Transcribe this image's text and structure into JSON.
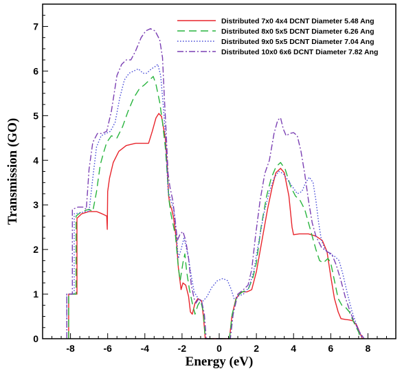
{
  "chart_data": {
    "type": "line",
    "title": "",
    "xlabel": "Energy (eV)",
    "ylabel": "Transmission (GO)",
    "xlim": [
      -9.5,
      9.5
    ],
    "ylim": [
      0,
      7.5
    ],
    "xticks": [
      -8,
      -6,
      -4,
      -2,
      0,
      2,
      4,
      6,
      8
    ],
    "yticks": [
      0,
      1,
      2,
      3,
      4,
      5,
      6,
      7
    ],
    "grid": false,
    "legend_position": "top-right",
    "series": [
      {
        "name": "Distributed 7x0 4x4 DCNT Diameter 5.48 Ang",
        "color": "#e8232a",
        "dash": "solid",
        "points": [
          [
            -8.1,
            0
          ],
          [
            -8.1,
            1
          ],
          [
            -7.65,
            1
          ],
          [
            -7.65,
            2.7
          ],
          [
            -7.4,
            2.8
          ],
          [
            -7.0,
            2.85
          ],
          [
            -6.6,
            2.85
          ],
          [
            -6.3,
            2.8
          ],
          [
            -6.05,
            2.75
          ],
          [
            -6.02,
            2.45
          ],
          [
            -6.0,
            3.3
          ],
          [
            -5.9,
            3.6
          ],
          [
            -5.7,
            3.95
          ],
          [
            -5.4,
            4.2
          ],
          [
            -5.0,
            4.33
          ],
          [
            -4.5,
            4.38
          ],
          [
            -4.0,
            4.38
          ],
          [
            -3.8,
            4.38
          ],
          [
            -3.6,
            4.65
          ],
          [
            -3.4,
            4.95
          ],
          [
            -3.25,
            5.05
          ],
          [
            -3.1,
            4.98
          ],
          [
            -2.9,
            4.5
          ],
          [
            -2.8,
            3.9
          ],
          [
            -2.72,
            3.2
          ],
          [
            -2.65,
            3.0
          ],
          [
            -2.55,
            2.9
          ],
          [
            -2.45,
            2.7
          ],
          [
            -2.3,
            2.2
          ],
          [
            -2.2,
            1.6
          ],
          [
            -2.05,
            1.1
          ],
          [
            -1.95,
            1.25
          ],
          [
            -1.8,
            1.2
          ],
          [
            -1.65,
            0.95
          ],
          [
            -1.55,
            0.6
          ],
          [
            -1.45,
            0.55
          ],
          [
            -1.3,
            0.8
          ],
          [
            -1.15,
            0.9
          ],
          [
            -0.95,
            0.85
          ],
          [
            -0.85,
            0.5
          ],
          [
            -0.75,
            0
          ],
          [
            0.55,
            0
          ],
          [
            0.68,
            0.5
          ],
          [
            0.9,
            0.9
          ],
          [
            1.2,
            1.05
          ],
          [
            1.5,
            1.05
          ],
          [
            1.75,
            1.1
          ],
          [
            2.0,
            1.5
          ],
          [
            2.3,
            2.2
          ],
          [
            2.6,
            2.9
          ],
          [
            2.85,
            3.4
          ],
          [
            3.05,
            3.72
          ],
          [
            3.3,
            3.82
          ],
          [
            3.5,
            3.72
          ],
          [
            3.75,
            3.2
          ],
          [
            3.92,
            2.5
          ],
          [
            4.0,
            2.33
          ],
          [
            4.3,
            2.35
          ],
          [
            4.8,
            2.35
          ],
          [
            5.2,
            2.3
          ],
          [
            5.55,
            2.2
          ],
          [
            5.8,
            1.95
          ],
          [
            6.0,
            1.4
          ],
          [
            6.2,
            0.9
          ],
          [
            6.4,
            0.6
          ],
          [
            6.55,
            0.45
          ],
          [
            6.8,
            0.43
          ],
          [
            7.0,
            0.42
          ],
          [
            7.2,
            0.4
          ],
          [
            7.4,
            0.3
          ],
          [
            7.6,
            0.1
          ],
          [
            7.7,
            0
          ]
        ]
      },
      {
        "name": "Distributed  8x0 5x5 DCNT Diameter 6.26  Ang",
        "color": "#27b43d",
        "dash": "long-dash",
        "points": [
          [
            -8.1,
            0
          ],
          [
            -8.1,
            1
          ],
          [
            -7.7,
            1
          ],
          [
            -7.7,
            2.75
          ],
          [
            -7.4,
            2.85
          ],
          [
            -7.0,
            2.9
          ],
          [
            -6.8,
            2.85
          ],
          [
            -6.6,
            3.3
          ],
          [
            -6.4,
            3.9
          ],
          [
            -6.2,
            4.2
          ],
          [
            -6.05,
            4.4
          ],
          [
            -5.8,
            4.55
          ],
          [
            -5.5,
            4.5
          ],
          [
            -5.2,
            4.75
          ],
          [
            -4.9,
            5.1
          ],
          [
            -4.6,
            5.4
          ],
          [
            -4.3,
            5.6
          ],
          [
            -4.0,
            5.7
          ],
          [
            -3.75,
            5.8
          ],
          [
            -3.55,
            5.88
          ],
          [
            -3.4,
            5.7
          ],
          [
            -3.2,
            5.3
          ],
          [
            -3.05,
            4.85
          ],
          [
            -2.9,
            4.3
          ],
          [
            -2.8,
            3.7
          ],
          [
            -2.7,
            3.1
          ],
          [
            -2.6,
            2.8
          ],
          [
            -2.5,
            2.6
          ],
          [
            -2.35,
            2.3
          ],
          [
            -2.2,
            1.6
          ],
          [
            -2.1,
            1.3
          ],
          [
            -1.95,
            1.7
          ],
          [
            -1.85,
            1.9
          ],
          [
            -1.75,
            1.5
          ],
          [
            -1.6,
            1.1
          ],
          [
            -1.45,
            0.8
          ],
          [
            -1.3,
            0.55
          ],
          [
            -1.15,
            0.75
          ],
          [
            -1.0,
            0.85
          ],
          [
            -0.85,
            0.6
          ],
          [
            -0.75,
            0
          ],
          [
            0.55,
            0
          ],
          [
            0.7,
            0.55
          ],
          [
            0.95,
            0.95
          ],
          [
            1.25,
            1.05
          ],
          [
            1.55,
            1.1
          ],
          [
            1.8,
            1.35
          ],
          [
            2.0,
            1.7
          ],
          [
            2.25,
            2.5
          ],
          [
            2.55,
            3.2
          ],
          [
            2.8,
            3.6
          ],
          [
            3.05,
            3.85
          ],
          [
            3.3,
            3.95
          ],
          [
            3.55,
            3.8
          ],
          [
            3.85,
            3.4
          ],
          [
            4.1,
            3.2
          ],
          [
            4.35,
            3.1
          ],
          [
            4.6,
            2.9
          ],
          [
            4.8,
            2.6
          ],
          [
            5.0,
            2.3
          ],
          [
            5.2,
            2.0
          ],
          [
            5.4,
            1.75
          ],
          [
            5.6,
            1.7
          ],
          [
            5.85,
            1.8
          ],
          [
            6.0,
            1.7
          ],
          [
            6.2,
            1.3
          ],
          [
            6.4,
            0.9
          ],
          [
            6.6,
            0.75
          ],
          [
            6.8,
            0.7
          ],
          [
            7.0,
            0.6
          ],
          [
            7.2,
            0.4
          ],
          [
            7.5,
            0.15
          ],
          [
            7.6,
            0
          ]
        ]
      },
      {
        "name": "Distributed  9x0 5x5 DCNT Diameter 7.04 Ang",
        "color": "#4a4ed8",
        "dash": "dotted",
        "points": [
          [
            -8.2,
            0
          ],
          [
            -8.2,
            1
          ],
          [
            -7.8,
            1
          ],
          [
            -7.8,
            2.8
          ],
          [
            -7.5,
            2.82
          ],
          [
            -7.2,
            2.85
          ],
          [
            -7.0,
            2.85
          ],
          [
            -6.8,
            3.6
          ],
          [
            -6.6,
            4.3
          ],
          [
            -6.35,
            4.55
          ],
          [
            -6.1,
            4.6
          ],
          [
            -5.85,
            4.65
          ],
          [
            -5.6,
            4.85
          ],
          [
            -5.35,
            5.4
          ],
          [
            -5.1,
            5.8
          ],
          [
            -4.85,
            5.95
          ],
          [
            -4.6,
            6.0
          ],
          [
            -4.35,
            6.05
          ],
          [
            -4.1,
            5.95
          ],
          [
            -3.9,
            5.95
          ],
          [
            -3.65,
            6.05
          ],
          [
            -3.45,
            6.1
          ],
          [
            -3.3,
            6.15
          ],
          [
            -3.15,
            5.9
          ],
          [
            -3.0,
            5.2
          ],
          [
            -2.9,
            4.6
          ],
          [
            -2.82,
            3.9
          ],
          [
            -2.75,
            3.3
          ],
          [
            -2.6,
            3.1
          ],
          [
            -2.45,
            2.9
          ],
          [
            -2.3,
            2.3
          ],
          [
            -2.2,
            1.8
          ],
          [
            -2.05,
            2.0
          ],
          [
            -1.9,
            2.25
          ],
          [
            -1.8,
            2.1
          ],
          [
            -1.65,
            1.8
          ],
          [
            -1.5,
            1.4
          ],
          [
            -1.35,
            1.05
          ],
          [
            -1.2,
            0.95
          ],
          [
            -1.05,
            0.85
          ],
          [
            -0.85,
            0.85
          ],
          [
            -0.65,
            0.95
          ],
          [
            -0.4,
            1.15
          ],
          [
            -0.1,
            1.3
          ],
          [
            0.2,
            1.35
          ],
          [
            0.45,
            1.3
          ],
          [
            0.65,
            1.1
          ],
          [
            0.8,
            0.9
          ],
          [
            1.0,
            0.95
          ],
          [
            1.3,
            1.0
          ],
          [
            1.6,
            1.15
          ],
          [
            1.85,
            1.5
          ],
          [
            2.1,
            2.1
          ],
          [
            2.4,
            2.8
          ],
          [
            2.7,
            3.3
          ],
          [
            2.95,
            3.6
          ],
          [
            3.2,
            3.75
          ],
          [
            3.45,
            3.7
          ],
          [
            3.7,
            3.55
          ],
          [
            3.95,
            3.4
          ],
          [
            4.2,
            3.25
          ],
          [
            4.45,
            3.3
          ],
          [
            4.65,
            3.5
          ],
          [
            4.85,
            3.62
          ],
          [
            5.05,
            3.5
          ],
          [
            5.2,
            3.1
          ],
          [
            5.35,
            2.6
          ],
          [
            5.5,
            2.2
          ],
          [
            5.7,
            2.0
          ],
          [
            5.95,
            1.9
          ],
          [
            6.2,
            1.85
          ],
          [
            6.45,
            1.75
          ],
          [
            6.65,
            1.45
          ],
          [
            6.9,
            1.0
          ],
          [
            7.15,
            0.6
          ],
          [
            7.4,
            0.3
          ],
          [
            7.6,
            0.1
          ],
          [
            7.7,
            0
          ]
        ]
      },
      {
        "name": "Distributed 10x0 6x6 DCNT Diameter 7.82  Ang",
        "color": "#7a3fb3",
        "dash": "dash-dot",
        "points": [
          [
            -8.2,
            0
          ],
          [
            -8.2,
            1
          ],
          [
            -7.9,
            1
          ],
          [
            -7.9,
            2.9
          ],
          [
            -7.6,
            2.95
          ],
          [
            -7.3,
            2.95
          ],
          [
            -7.15,
            2.9
          ],
          [
            -7.0,
            3.8
          ],
          [
            -6.8,
            4.4
          ],
          [
            -6.55,
            4.6
          ],
          [
            -6.3,
            4.6
          ],
          [
            -6.05,
            4.65
          ],
          [
            -5.8,
            5.1
          ],
          [
            -5.5,
            5.9
          ],
          [
            -5.25,
            6.15
          ],
          [
            -5.0,
            6.25
          ],
          [
            -4.75,
            6.25
          ],
          [
            -4.5,
            6.45
          ],
          [
            -4.2,
            6.75
          ],
          [
            -3.95,
            6.9
          ],
          [
            -3.7,
            6.95
          ],
          [
            -3.45,
            6.9
          ],
          [
            -3.2,
            6.7
          ],
          [
            -3.05,
            6.3
          ],
          [
            -2.95,
            5.4
          ],
          [
            -2.85,
            4.6
          ],
          [
            -2.75,
            3.7
          ],
          [
            -2.65,
            3.4
          ],
          [
            -2.5,
            3.1
          ],
          [
            -2.35,
            2.6
          ],
          [
            -2.25,
            2.2
          ],
          [
            -2.1,
            2.35
          ],
          [
            -1.95,
            2.4
          ],
          [
            -1.8,
            2.2
          ],
          [
            -1.65,
            1.8
          ],
          [
            -1.5,
            1.2
          ],
          [
            -1.35,
            0.9
          ],
          [
            -1.25,
            0.8
          ],
          [
            -1.1,
            0.9
          ],
          [
            -0.95,
            0.85
          ],
          [
            -0.8,
            0.55
          ],
          [
            -0.7,
            0
          ],
          [
            0.6,
            0
          ],
          [
            0.75,
            0.55
          ],
          [
            1.0,
            1.0
          ],
          [
            1.3,
            1.1
          ],
          [
            1.55,
            1.2
          ],
          [
            1.75,
            1.55
          ],
          [
            1.95,
            2.3
          ],
          [
            2.2,
            3.1
          ],
          [
            2.45,
            3.7
          ],
          [
            2.7,
            4.0
          ],
          [
            2.95,
            4.6
          ],
          [
            3.15,
            4.9
          ],
          [
            3.3,
            4.95
          ],
          [
            3.45,
            4.7
          ],
          [
            3.6,
            4.55
          ],
          [
            3.8,
            4.6
          ],
          [
            4.0,
            4.62
          ],
          [
            4.2,
            4.55
          ],
          [
            4.4,
            4.2
          ],
          [
            4.6,
            3.7
          ],
          [
            4.8,
            3.1
          ],
          [
            5.0,
            2.6
          ],
          [
            5.2,
            2.3
          ],
          [
            5.5,
            2.05
          ],
          [
            5.8,
            1.95
          ],
          [
            6.05,
            1.9
          ],
          [
            6.3,
            1.65
          ],
          [
            6.55,
            1.3
          ],
          [
            6.8,
            0.9
          ],
          [
            7.05,
            0.6
          ],
          [
            7.3,
            0.35
          ],
          [
            7.55,
            0.15
          ],
          [
            7.8,
            0
          ]
        ]
      }
    ]
  }
}
